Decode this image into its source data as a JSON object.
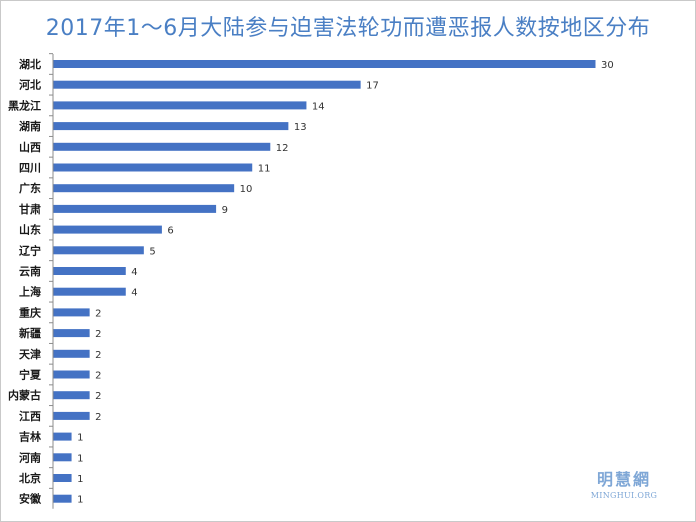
{
  "chart_data": {
    "type": "bar",
    "orientation": "horizontal",
    "title": "2017年1～6月大陆参与迫害法轮功而遭恶报人数按地区分布",
    "categories": [
      "湖北",
      "河北",
      "黑龙江",
      "湖南",
      "山西",
      "四川",
      "广东",
      "甘肃",
      "山东",
      "辽宁",
      "云南",
      "上海",
      "重庆",
      "新疆",
      "天津",
      "宁夏",
      "内蒙古",
      "江西",
      "吉林",
      "河南",
      "北京",
      "安徽"
    ],
    "values": [
      30,
      17,
      14,
      13,
      12,
      11,
      10,
      9,
      6,
      5,
      4,
      4,
      2,
      2,
      2,
      2,
      2,
      2,
      1,
      1,
      1,
      1
    ],
    "xlim": [
      0,
      30
    ],
    "data_labels": true,
    "grid": false,
    "bar_color": "#4472c4"
  },
  "watermark": {
    "text_cn": "明慧網",
    "text_en": "MINGHUI.ORG"
  }
}
